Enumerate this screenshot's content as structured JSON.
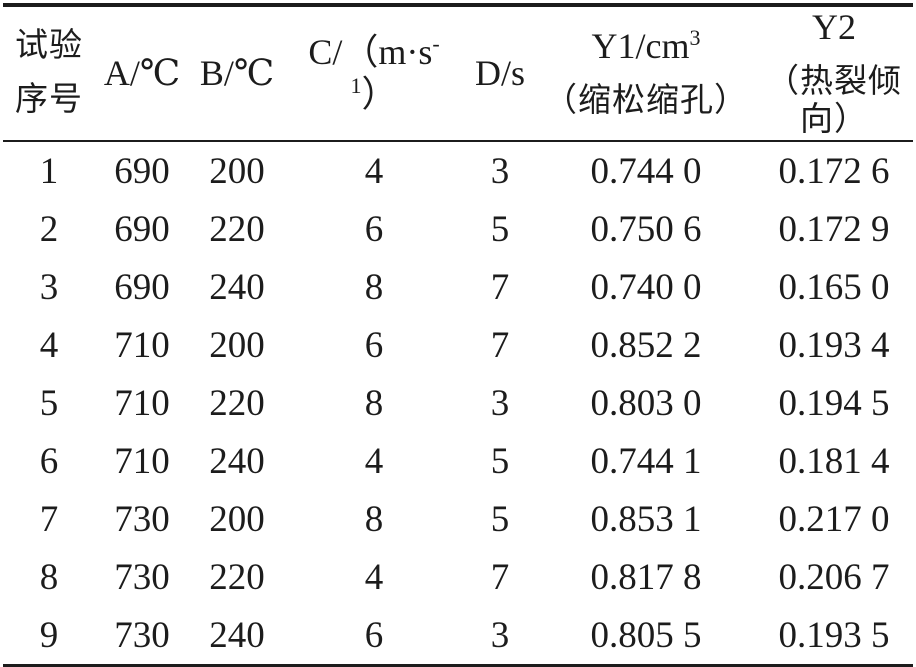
{
  "colors": {
    "text": "#1c1c1c",
    "rule": "#1c1c1c",
    "background": "#ffffff"
  },
  "table": {
    "header": {
      "trial_line1": "试验",
      "trial_line2": "序号",
      "a": "A/℃",
      "b": "B/℃",
      "c_prefix": "C/（m·s",
      "c_sup": "-1",
      "c_suffix": "）",
      "d": "D/s",
      "y1_prefix": "Y1/cm",
      "y1_sup": "3",
      "y1_sub": "（缩松缩孔）",
      "y2": "Y2",
      "y2_sub": "（热裂倾向）"
    },
    "rows": [
      {
        "no": "1",
        "a": "690",
        "b": "200",
        "c": "4",
        "d": "3",
        "y1": "0.744 0",
        "y2": "0.172 6"
      },
      {
        "no": "2",
        "a": "690",
        "b": "220",
        "c": "6",
        "d": "5",
        "y1": "0.750 6",
        "y2": "0.172 9"
      },
      {
        "no": "3",
        "a": "690",
        "b": "240",
        "c": "8",
        "d": "7",
        "y1": "0.740 0",
        "y2": "0.165 0"
      },
      {
        "no": "4",
        "a": "710",
        "b": "200",
        "c": "6",
        "d": "7",
        "y1": "0.852 2",
        "y2": "0.193 4"
      },
      {
        "no": "5",
        "a": "710",
        "b": "220",
        "c": "8",
        "d": "3",
        "y1": "0.803 0",
        "y2": "0.194 5"
      },
      {
        "no": "6",
        "a": "710",
        "b": "240",
        "c": "4",
        "d": "5",
        "y1": "0.744 1",
        "y2": "0.181 4"
      },
      {
        "no": "7",
        "a": "730",
        "b": "200",
        "c": "8",
        "d": "5",
        "y1": "0.853 1",
        "y2": "0.217 0"
      },
      {
        "no": "8",
        "a": "730",
        "b": "220",
        "c": "4",
        "d": "7",
        "y1": "0.817 8",
        "y2": "0.206 7"
      },
      {
        "no": "9",
        "a": "730",
        "b": "240",
        "c": "6",
        "d": "3",
        "y1": "0.805 5",
        "y2": "0.193 5"
      }
    ]
  }
}
